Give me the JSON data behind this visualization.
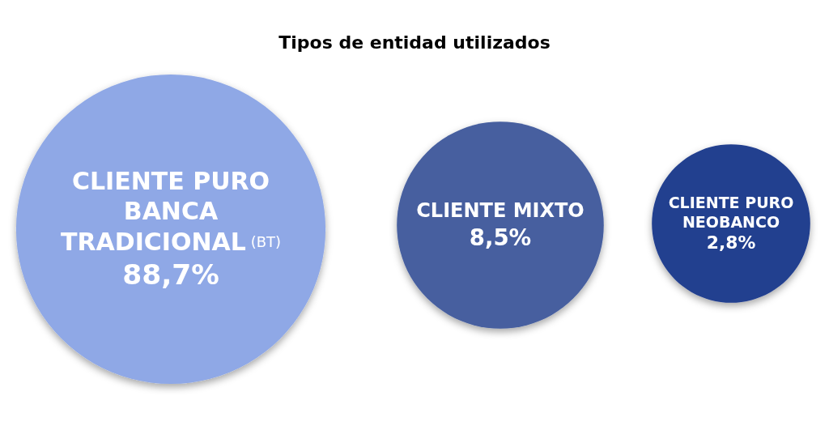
{
  "chart_data": {
    "type": "other",
    "title": "Tipos de entidad utilizados",
    "categories": [
      "CLIENTE PURO BANCA TRADICIONAL (BT)",
      "CLIENTE MIXTO",
      "CLIENTE PURO NEOBANCO"
    ],
    "values": [
      88.7,
      8.5,
      2.8
    ],
    "value_labels": [
      "88,7%",
      "8,5%",
      "2,8%"
    ],
    "colors": [
      "#8fa8e6",
      "#465f9f",
      "#233f8f"
    ]
  }
}
